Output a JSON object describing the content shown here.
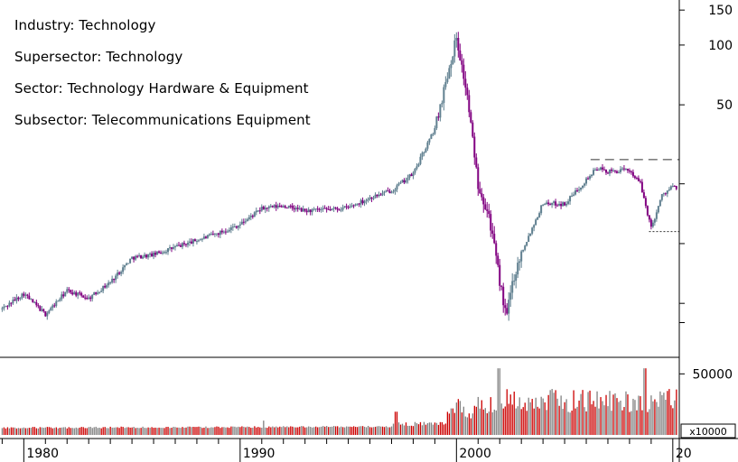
{
  "info": {
    "industry": "Industry: Technology",
    "supersector": "Supersector: Technology",
    "sector": "Sector: Technology Hardware & Equipment",
    "subsector": "Subsector: Telecommunications Equipment"
  },
  "colors": {
    "up": "#5f7f8f",
    "down": "#800080",
    "vol_up": "#808080",
    "vol_down": "#cc0000",
    "guide": "#333333"
  },
  "chart_data": {
    "type": "candlestick",
    "price_axis": {
      "scale": "log",
      "ticks": [
        150,
        100,
        50
      ],
      "range": [
        3,
        160
      ]
    },
    "volume_axis": {
      "ticks": [
        50000
      ],
      "unit_label": "x10000",
      "range": [
        0,
        60000
      ]
    },
    "x_axis": {
      "ticks": [
        "1980",
        "1990",
        "2000",
        "20"
      ],
      "range": [
        1978.9,
        2010.3
      ]
    },
    "monthly_closes": [
      [
        1979.0,
        4.7
      ],
      [
        1980.0,
        5.6
      ],
      [
        1981.0,
        4.4
      ],
      [
        1982.0,
        5.8
      ],
      [
        1983.0,
        5.3
      ],
      [
        1984.0,
        6.4
      ],
      [
        1985.0,
        8.5
      ],
      [
        1986.0,
        8.8
      ],
      [
        1987.0,
        9.6
      ],
      [
        1988.0,
        10.4
      ],
      [
        1989.0,
        11.3
      ],
      [
        1990.0,
        12.5
      ],
      [
        1991.0,
        15.0
      ],
      [
        1992.0,
        15.5
      ],
      [
        1993.0,
        14.6
      ],
      [
        1994.0,
        14.8
      ],
      [
        1995.0,
        15.2
      ],
      [
        1996.0,
        17.0
      ],
      [
        1997.0,
        18.5
      ],
      [
        1998.0,
        22.5
      ],
      [
        1999.0,
        38.0
      ],
      [
        1999.5,
        65.0
      ],
      [
        2000.0,
        110.0
      ],
      [
        2000.5,
        55.0
      ],
      [
        2001.0,
        20.0
      ],
      [
        2001.5,
        14.0
      ],
      [
        2002.0,
        6.5
      ],
      [
        2002.3,
        4.2
      ],
      [
        2002.6,
        6.5
      ],
      [
        2003.0,
        9.0
      ],
      [
        2003.5,
        12.0
      ],
      [
        2004.0,
        16.0
      ],
      [
        2005.0,
        15.8
      ],
      [
        2006.0,
        21.0
      ],
      [
        2006.5,
        24.0
      ],
      [
        2007.0,
        23.0
      ],
      [
        2008.0,
        23.5
      ],
      [
        2008.5,
        20.0
      ],
      [
        2009.0,
        12.0
      ],
      [
        2009.5,
        17.5
      ],
      [
        2010.0,
        19.5
      ],
      [
        2010.2,
        18.5
      ]
    ],
    "annotations": {
      "dashed_high": {
        "level": 26.5,
        "from": 2006.2,
        "to": 2010.3
      },
      "dotted_low": {
        "level": 11.5,
        "from": 2008.9,
        "to": 2010.3
      }
    }
  }
}
